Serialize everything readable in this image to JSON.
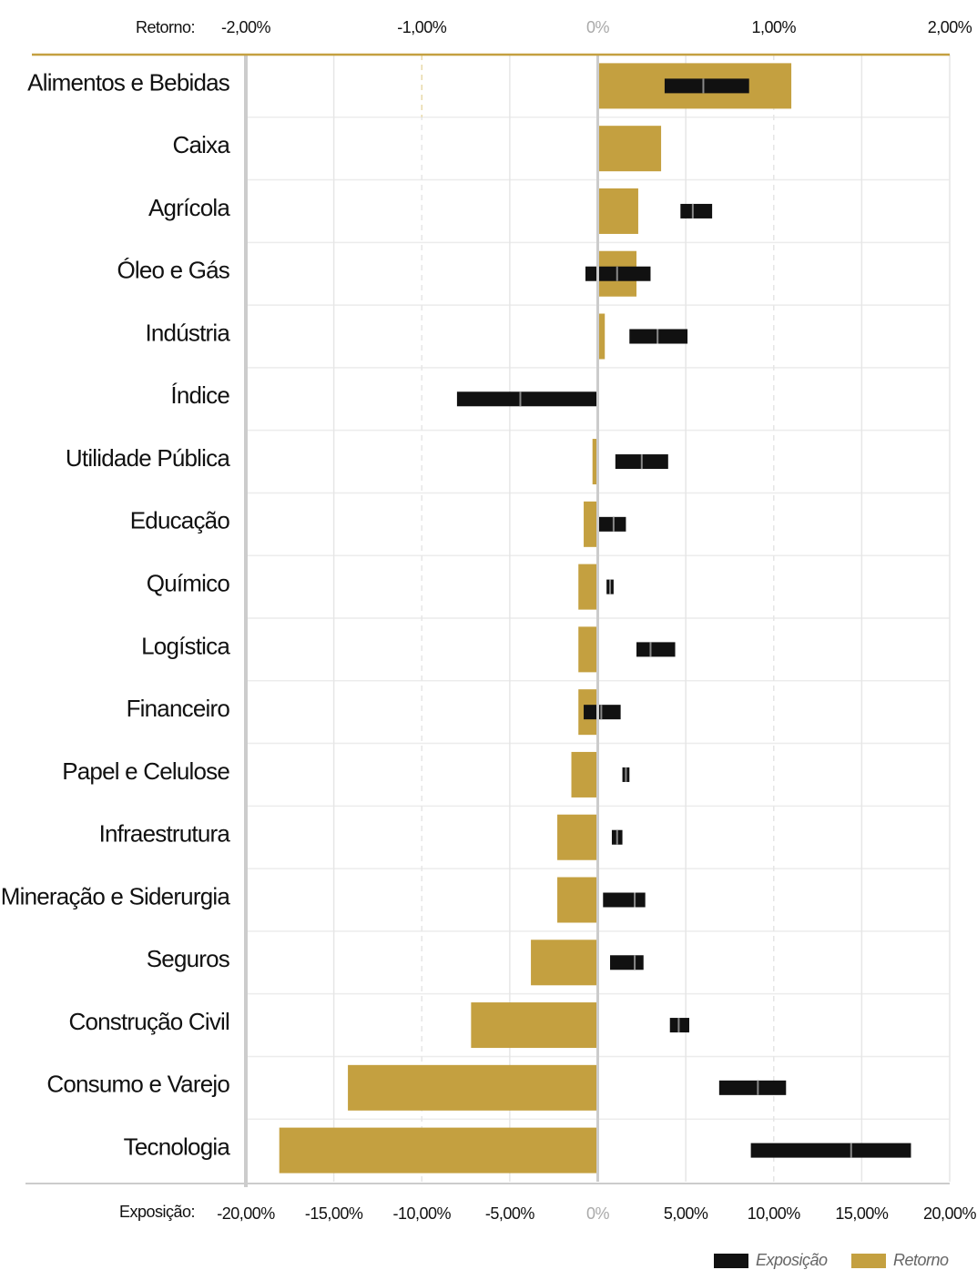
{
  "chart_data": {
    "type": "bar",
    "x_axis_label": "Exposição:",
    "x2_axis_label": "Retorno:",
    "categories": [
      "Alimentos e Bebidas",
      "Caixa",
      "Agrícola",
      "Óleo e Gás",
      "Indústria",
      "Índice",
      "Utilidade Pública",
      "Educação",
      "Químico",
      "Logística",
      "Financeiro",
      "Papel e Celulose",
      "Infraestrutura",
      "Mineração e Siderurgia",
      "Seguros",
      "Construção Civil",
      "Consumo e Varejo",
      "Tecnologia"
    ],
    "series": [
      {
        "name": "Exposição",
        "color": "#111111",
        "min": [
          3.8,
          null,
          4.7,
          -0.7,
          1.8,
          -8.0,
          1.0,
          0.0,
          0.5,
          2.2,
          -0.8,
          1.4,
          0.8,
          0.3,
          0.7,
          4.1,
          6.9,
          8.7
        ],
        "max": [
          8.6,
          null,
          6.5,
          3.0,
          5.1,
          0.0,
          4.0,
          1.6,
          0.9,
          4.4,
          1.3,
          1.8,
          1.4,
          2.7,
          2.6,
          5.2,
          10.7,
          17.8
        ],
        "mid": [
          6.0,
          null,
          5.4,
          1.1,
          3.4,
          -4.4,
          2.5,
          0.9,
          0.7,
          3.0,
          0.2,
          1.6,
          1.1,
          2.1,
          2.1,
          4.6,
          9.1,
          14.4
        ]
      },
      {
        "name": "Retorno",
        "color": "#c4a040",
        "axis": "x2",
        "values": [
          1.1,
          0.36,
          0.23,
          0.22,
          0.04,
          0,
          -0.03,
          -0.08,
          -0.11,
          -0.11,
          -0.11,
          -0.15,
          -0.23,
          -0.23,
          -0.38,
          -0.72,
          -1.42,
          -1.81
        ]
      }
    ],
    "xlim": [
      -20,
      20
    ],
    "xticks": [
      {
        "value": -20,
        "label": "-20,00%"
      },
      {
        "value": -15,
        "label": "-15,00%"
      },
      {
        "value": -10,
        "label": "-10,00%"
      },
      {
        "value": -5,
        "label": "-5,00%"
      },
      {
        "value": 0,
        "label": "0%"
      },
      {
        "value": 5,
        "label": "5,00%"
      },
      {
        "value": 10,
        "label": "10,00%"
      },
      {
        "value": 15,
        "label": "15,00%"
      },
      {
        "value": 20,
        "label": "20,00%"
      }
    ],
    "x2lim": [
      -2,
      2
    ],
    "x2ticks": [
      {
        "value": -2,
        "label": "-2,00%"
      },
      {
        "value": -1,
        "label": "-1,00%"
      },
      {
        "value": 0,
        "label": "0%"
      },
      {
        "value": 1,
        "label": "1,00%"
      },
      {
        "value": 2,
        "label": "2,00%"
      }
    ],
    "grid": true,
    "legend": "bottom right"
  }
}
